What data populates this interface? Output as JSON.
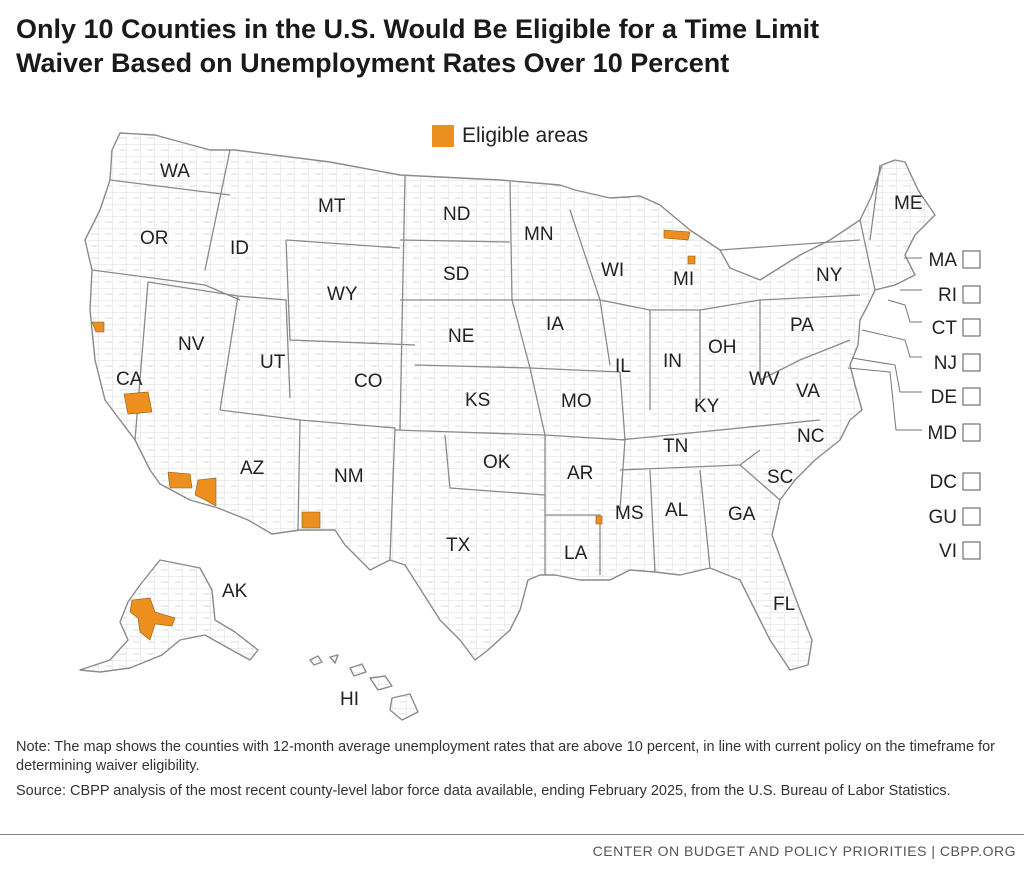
{
  "title_line1": "Only 10 Counties in the U.S. Would Be Eligible for a Time Limit",
  "title_line2": "Waiver Based on Unemployment Rates Over 10 Percent",
  "legend": {
    "label": "Eligible areas",
    "color": "#ec8f1f"
  },
  "colors": {
    "eligible": "#ec8f1f",
    "land": "#ffffff",
    "border": "#8a8a8a",
    "county_line": "#c8c8c8"
  },
  "state_labels": [
    "WA",
    "OR",
    "CA",
    "NV",
    "ID",
    "MT",
    "WY",
    "UT",
    "AZ",
    "NM",
    "CO",
    "ND",
    "SD",
    "NE",
    "KS",
    "OK",
    "TX",
    "MN",
    "IA",
    "MO",
    "AR",
    "LA",
    "WI",
    "IL",
    "MI",
    "IN",
    "OH",
    "KY",
    "TN",
    "MS",
    "AL",
    "GA",
    "FL",
    "SC",
    "NC",
    "VA",
    "WV",
    "PA",
    "NY",
    "ME",
    "AK",
    "HI"
  ],
  "small_states": [
    "MA",
    "RI",
    "CT",
    "NJ",
    "DE",
    "MD"
  ],
  "territories": [
    "DC",
    "GU",
    "VI"
  ],
  "note": "Note: The map shows the counties with 12-month average unemployment rates that are above 10 percent, in line with current policy on the timeframe for determining waiver eligibility.",
  "source": "Source: CBPP analysis of the most recent county-level labor force data available, ending February 2025, from the U.S. Bureau of Labor Statistics.",
  "footer": "CENTER ON BUDGET AND POLICY PRIORITIES | CBPP.ORG"
}
